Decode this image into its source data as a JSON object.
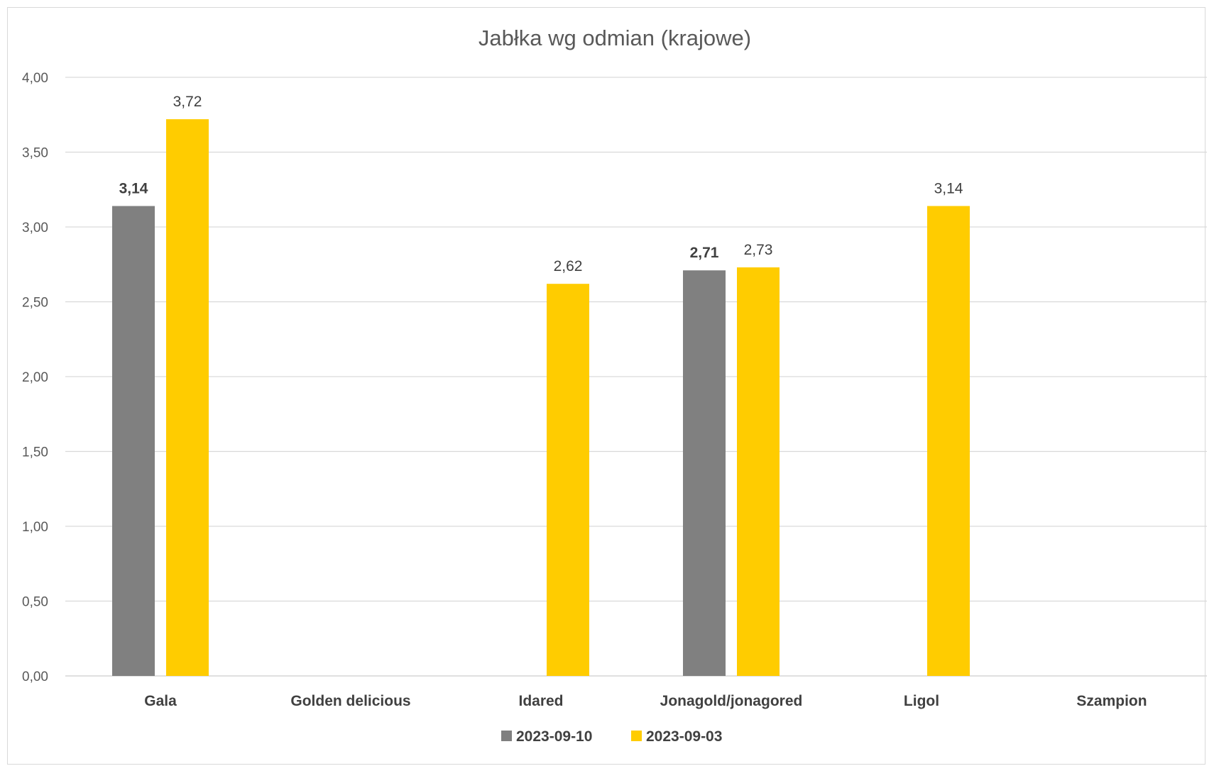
{
  "chart_data": {
    "type": "bar",
    "title": "Jabłka wg odmian (krajowe)",
    "categories": [
      "Gala",
      "Golden delicious",
      "Idared",
      "Jonagold/jonagored",
      "Ligol",
      "Szampion"
    ],
    "series": [
      {
        "name": "2023-09-10",
        "color": "#808080",
        "values": [
          3.14,
          null,
          null,
          2.71,
          null,
          null
        ],
        "labels_bold": true
      },
      {
        "name": "2023-09-03",
        "color": "#FFCC00",
        "values": [
          3.72,
          null,
          2.62,
          2.73,
          3.14,
          null
        ],
        "labels_bold": false
      }
    ],
    "ylim": [
      0,
      4
    ],
    "yticks": [
      "0,00",
      "0,50",
      "1,00",
      "1,50",
      "2,00",
      "2,50",
      "3,00",
      "3,50",
      "4,00"
    ],
    "ytick_values": [
      0,
      0.5,
      1,
      1.5,
      2,
      2.5,
      3,
      3.5,
      4
    ],
    "decimal_separator": ",",
    "grid": true,
    "legend_position": "bottom",
    "gridline_color": "#d9d9d9"
  }
}
